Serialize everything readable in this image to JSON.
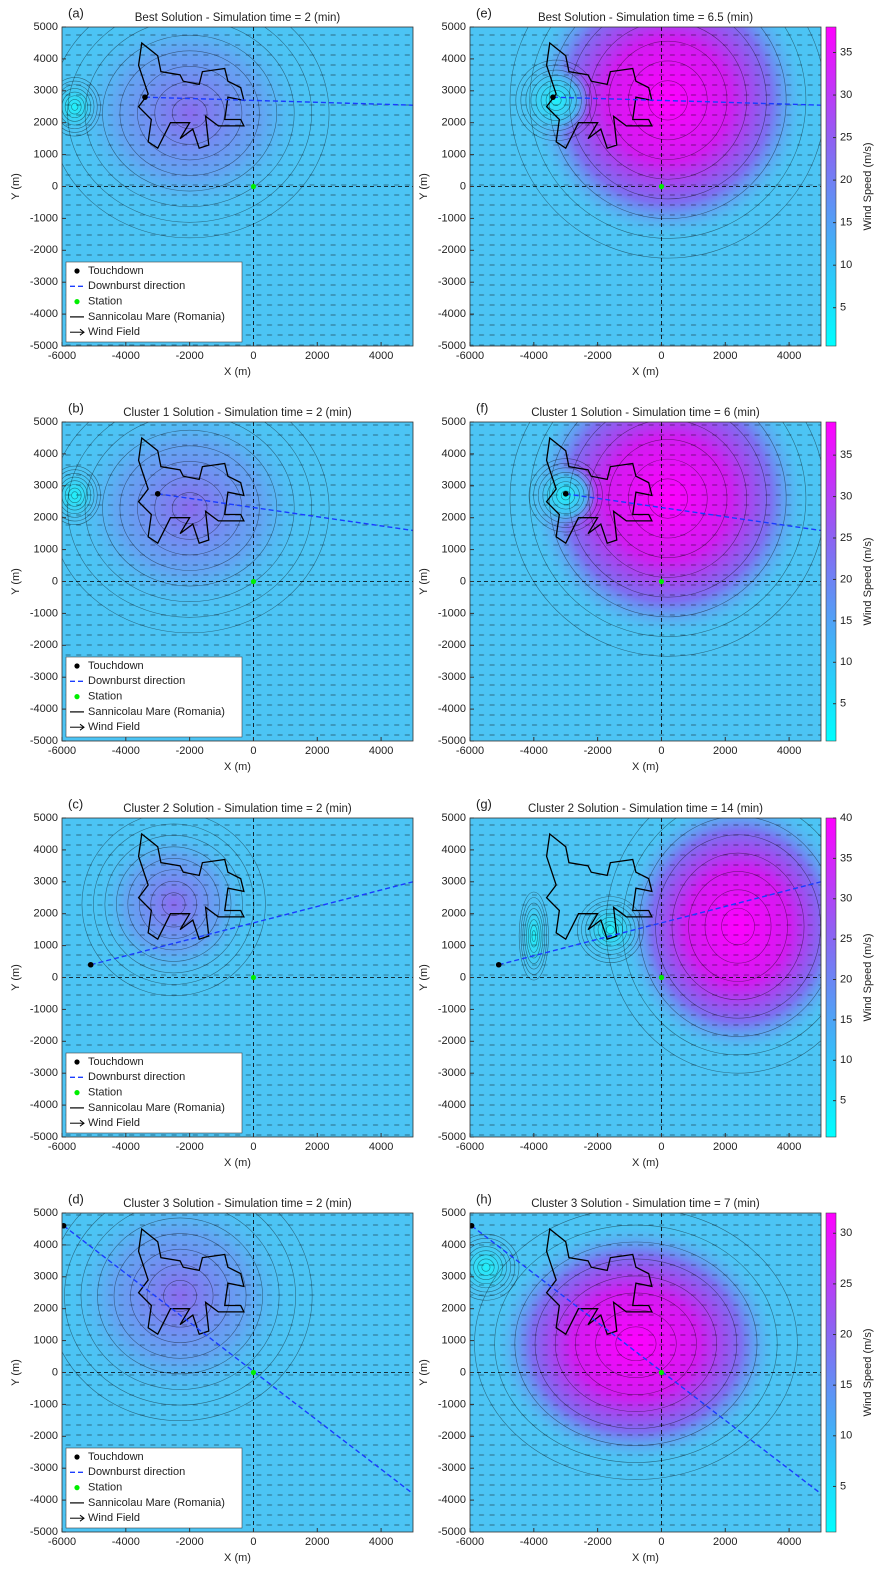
{
  "chart_data": [
    {
      "type": "wind-field",
      "panel": "(a)",
      "title": "Best Solution  - Simulation time = 2  (min)",
      "xlabel": "X (m)",
      "ylabel": "Y (m)",
      "xlim": [
        -6000,
        5000
      ],
      "ylim": [
        -5000,
        5000
      ],
      "xticks": [
        -6000,
        -4000,
        -2000,
        0,
        2000,
        4000
      ],
      "yticks": [
        -5000,
        -4000,
        -3000,
        -2000,
        -1000,
        0,
        1000,
        2000,
        3000,
        4000,
        5000
      ],
      "touchdown": {
        "x": -3400,
        "y": 2800
      },
      "direction": {
        "x": [
          -3400,
          5000
        ],
        "y": [
          2800,
          2550
        ]
      },
      "station": {
        "x": 0,
        "y": 0
      },
      "colors": {
        "touchdown": "#000000",
        "direction": "#1a3cff",
        "station": "#00ee00"
      },
      "legend": {
        "position": "lower left",
        "entries": [
          "Touchdown",
          "Downburst direction",
          "Station",
          "Sannicolau Mare (Romania)",
          "Wind Field"
        ]
      }
    },
    {
      "type": "wind-field",
      "panel": "(b)",
      "title": "Cluster 1 Solution  - Simulation time = 2  (min)",
      "xlabel": "X (m)",
      "ylabel": "Y (m)",
      "xlim": [
        -6000,
        5000
      ],
      "ylim": [
        -5000,
        5000
      ],
      "xticks": [
        -6000,
        -4000,
        -2000,
        0,
        2000,
        4000
      ],
      "yticks": [
        -5000,
        -4000,
        -3000,
        -2000,
        -1000,
        0,
        1000,
        2000,
        3000,
        4000,
        5000
      ],
      "touchdown": {
        "x": -3000,
        "y": 2750
      },
      "direction": {
        "x": [
          -3000,
          5000
        ],
        "y": [
          2750,
          1600
        ]
      },
      "station": {
        "x": 0,
        "y": 0
      },
      "colors": {
        "touchdown": "#000000",
        "direction": "#1a3cff",
        "station": "#00ee00"
      },
      "legend": {
        "position": "lower left",
        "entries": [
          "Touchdown",
          "Downburst direction",
          "Station",
          "Sannicolau Mare (Romania)",
          "Wind Field"
        ]
      }
    },
    {
      "type": "wind-field",
      "panel": "(c)",
      "title": "Cluster 2 Solution  - Simulation time = 2  (min)",
      "xlabel": "X (m)",
      "ylabel": "Y (m)",
      "xlim": [
        -6000,
        5000
      ],
      "ylim": [
        -5000,
        5000
      ],
      "xticks": [
        -6000,
        -4000,
        -2000,
        0,
        2000,
        4000
      ],
      "yticks": [
        -5000,
        -4000,
        -3000,
        -2000,
        -1000,
        0,
        1000,
        2000,
        3000,
        4000,
        5000
      ],
      "touchdown": {
        "x": -5100,
        "y": 400
      },
      "direction": {
        "x": [
          -5100,
          5000
        ],
        "y": [
          400,
          3000
        ]
      },
      "station": {
        "x": 0,
        "y": 0
      },
      "colors": {
        "touchdown": "#000000",
        "direction": "#1a3cff",
        "station": "#00ee00"
      },
      "legend": {
        "position": "lower left",
        "entries": [
          "Touchdown",
          "Downburst direction",
          "Station",
          "Sannicolau Mare (Romania)",
          "Wind Field"
        ]
      }
    },
    {
      "type": "wind-field",
      "panel": "(d)",
      "title": "Cluster 3 Solution  - Simulation time = 2  (min)",
      "xlabel": "X (m)",
      "ylabel": "Y (m)",
      "xlim": [
        -6000,
        5000
      ],
      "ylim": [
        -5000,
        5000
      ],
      "xticks": [
        -6000,
        -4000,
        -2000,
        0,
        2000,
        4000
      ],
      "yticks": [
        -5000,
        -4000,
        -3000,
        -2000,
        -1000,
        0,
        1000,
        2000,
        3000,
        4000,
        5000
      ],
      "touchdown": {
        "x": -5950,
        "y": 4600
      },
      "direction": {
        "x": [
          -5950,
          5000
        ],
        "y": [
          4600,
          -3800
        ]
      },
      "station": {
        "x": 0,
        "y": 0
      },
      "colors": {
        "touchdown": "#000000",
        "direction": "#1a3cff",
        "station": "#00ee00"
      },
      "legend": {
        "position": "lower left",
        "entries": [
          "Touchdown",
          "Downburst direction",
          "Station",
          "Sannicolau Mare (Romania)",
          "Wind Field"
        ]
      }
    },
    {
      "type": "wind-field",
      "panel": "(e)",
      "title": "Best Solution  - Simulation time = 6.5  (min)",
      "xlabel": "X (m)",
      "ylabel": "Y (m)",
      "xlim": [
        -6000,
        5000
      ],
      "ylim": [
        -5000,
        5000
      ],
      "xticks": [
        -6000,
        -4000,
        -2000,
        0,
        2000,
        4000
      ],
      "yticks": [
        -5000,
        -4000,
        -3000,
        -2000,
        -1000,
        0,
        1000,
        2000,
        3000,
        4000,
        5000
      ],
      "touchdown": {
        "x": -3400,
        "y": 2800
      },
      "direction": {
        "x": [
          -3400,
          5000
        ],
        "y": [
          2800,
          2550
        ]
      },
      "station": {
        "x": 0,
        "y": 0
      },
      "colors": {
        "touchdown": "#000000",
        "direction": "#1a3cff",
        "station": "#00ee00"
      },
      "colorbar": {
        "label": "Wind Speed (m/s)",
        "lim": [
          0.5,
          38
        ],
        "ticks": [
          5,
          10,
          15,
          20,
          25,
          30,
          35
        ]
      }
    },
    {
      "type": "wind-field",
      "panel": "(f)",
      "title": "Cluster 1 Solution  - Simulation time = 6  (min)",
      "xlabel": "X (m)",
      "ylabel": "Y (m)",
      "xlim": [
        -6000,
        5000
      ],
      "ylim": [
        -5000,
        5000
      ],
      "xticks": [
        -6000,
        -4000,
        -2000,
        0,
        2000,
        4000
      ],
      "yticks": [
        -5000,
        -4000,
        -3000,
        -2000,
        -1000,
        0,
        1000,
        2000,
        3000,
        4000,
        5000
      ],
      "touchdown": {
        "x": -3000,
        "y": 2750
      },
      "direction": {
        "x": [
          -3000,
          5000
        ],
        "y": [
          2750,
          1600
        ]
      },
      "station": {
        "x": 0,
        "y": 0
      },
      "colors": {
        "touchdown": "#000000",
        "direction": "#1a3cff",
        "station": "#00ee00"
      },
      "colorbar": {
        "label": "Wind Speed (m/s)",
        "lim": [
          0.5,
          39
        ],
        "ticks": [
          5,
          10,
          15,
          20,
          25,
          30,
          35
        ]
      }
    },
    {
      "type": "wind-field",
      "panel": "(g)",
      "title": "Cluster 2 Solution  - Simulation time = 14  (min)",
      "xlabel": "X (m)",
      "ylabel": "Y (m)",
      "xlim": [
        -6000,
        5000
      ],
      "ylim": [
        -5000,
        5000
      ],
      "xticks": [
        -6000,
        -4000,
        -2000,
        0,
        2000,
        4000
      ],
      "yticks": [
        -5000,
        -4000,
        -3000,
        -2000,
        -1000,
        0,
        1000,
        2000,
        3000,
        4000,
        5000
      ],
      "touchdown": {
        "x": -5100,
        "y": 400
      },
      "direction": {
        "x": [
          -5100,
          5000
        ],
        "y": [
          400,
          3000
        ]
      },
      "station": {
        "x": 0,
        "y": 0
      },
      "colors": {
        "touchdown": "#000000",
        "direction": "#1a3cff",
        "station": "#00ee00"
      },
      "colorbar": {
        "label": "Wind Speed (m/s)",
        "lim": [
          0.5,
          40
        ],
        "ticks": [
          5,
          10,
          15,
          20,
          25,
          30,
          35,
          40
        ]
      }
    },
    {
      "type": "wind-field",
      "panel": "(h)",
      "title": "Cluster 3 Solution  - Simulation time = 7  (min)",
      "xlabel": "X (m)",
      "ylabel": "Y (m)",
      "xlim": [
        -6000,
        5000
      ],
      "ylim": [
        -5000,
        5000
      ],
      "xticks": [
        -6000,
        -4000,
        -2000,
        0,
        2000,
        4000
      ],
      "yticks": [
        -5000,
        -4000,
        -3000,
        -2000,
        -1000,
        0,
        1000,
        2000,
        3000,
        4000,
        5000
      ],
      "touchdown": {
        "x": -5950,
        "y": 4600
      },
      "direction": {
        "x": [
          -5950,
          5000
        ],
        "y": [
          4600,
          -3800
        ]
      },
      "station": {
        "x": 0,
        "y": 0
      },
      "colors": {
        "touchdown": "#000000",
        "direction": "#1a3cff",
        "station": "#00ee00"
      },
      "colorbar": {
        "label": "Wind Speed (m/s)",
        "lim": [
          0.5,
          32
        ],
        "ticks": [
          5,
          10,
          15,
          20,
          25,
          30
        ]
      }
    }
  ]
}
